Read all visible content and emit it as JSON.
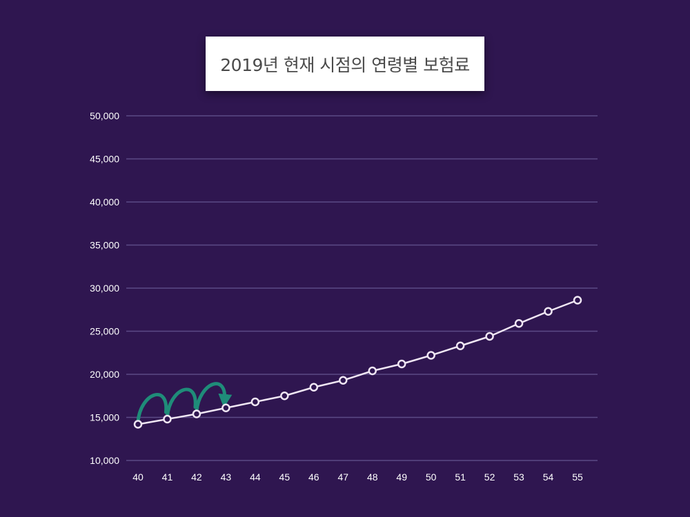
{
  "chart_data": {
    "type": "line",
    "title": "2019년 현재 시점의 연령별 보험료",
    "xlabel": "",
    "ylabel": "",
    "x": [
      40,
      41,
      42,
      43,
      44,
      45,
      46,
      47,
      48,
      49,
      50,
      51,
      52,
      53,
      54,
      55
    ],
    "series": [
      {
        "values": [
          14200,
          14800,
          15400,
          16100,
          16800,
          17500,
          18500,
          19300,
          20400,
          21200,
          22200,
          23300,
          24400,
          25900,
          27300,
          28600
        ]
      }
    ],
    "y_ticks": [
      "10,000",
      "15,000",
      "20,000",
      "25,000",
      "30,000",
      "35,000",
      "40,000",
      "45,000",
      "50,000"
    ],
    "ylim": [
      10000,
      50000
    ],
    "xlim": [
      40,
      55
    ],
    "grid": true,
    "annotation": "curved teal arrows hopping from 40 to 43",
    "colors": {
      "background": "#2f1650",
      "grid": "#5c4a86",
      "line": "#efe6f3",
      "marker_fill": "#2f1650",
      "arrow": "#1f8c79"
    }
  }
}
